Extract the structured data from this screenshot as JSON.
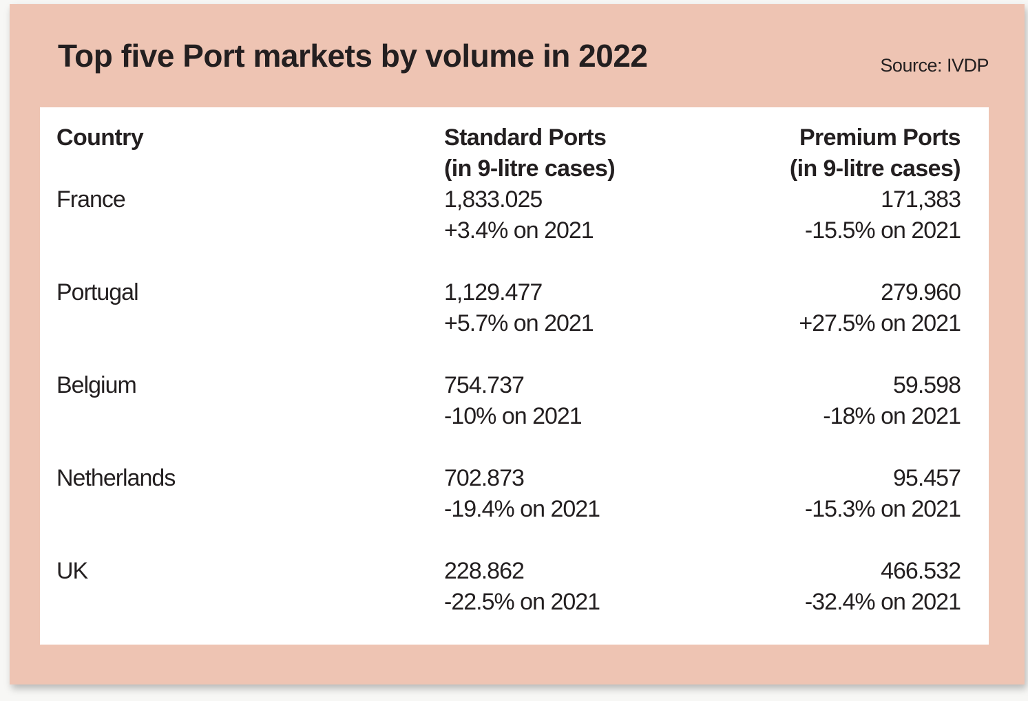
{
  "title": "Top five Port markets by volume in 2022",
  "source": "Source: IVDP",
  "colors": {
    "background": "#eec4b3",
    "table": "#ffffff",
    "text": "#231f20"
  },
  "chart_data": {
    "type": "table",
    "title": "Top five Port markets by volume in 2022",
    "columns": [
      {
        "line1": "Country",
        "line2": ""
      },
      {
        "line1": "Standard Ports",
        "line2": "(in 9-litre cases)"
      },
      {
        "line1": "Premium Ports",
        "line2": "(in 9-litre cases)"
      }
    ],
    "rows": [
      {
        "country": "France",
        "standard": "1,833.025",
        "standard_change": "+3.4% on 2021",
        "premium": "171,383",
        "premium_change": "-15.5% on 2021"
      },
      {
        "country": "Portugal",
        "standard": "1,129.477",
        "standard_change": "+5.7% on 2021",
        "premium": "279.960",
        "premium_change": "+27.5% on 2021"
      },
      {
        "country": "Belgium",
        "standard": "754.737",
        "standard_change": "-10% on 2021",
        "premium": "59.598",
        "premium_change": "-18% on 2021"
      },
      {
        "country": "Netherlands",
        "standard": "702.873",
        "standard_change": "-19.4% on 2021",
        "premium": "95.457",
        "premium_change": "-15.3% on 2021"
      },
      {
        "country": "UK",
        "standard": "228.862",
        "standard_change": "-22.5% on 2021",
        "premium": "466.532",
        "premium_change": "-32.4% on 2021"
      }
    ]
  }
}
